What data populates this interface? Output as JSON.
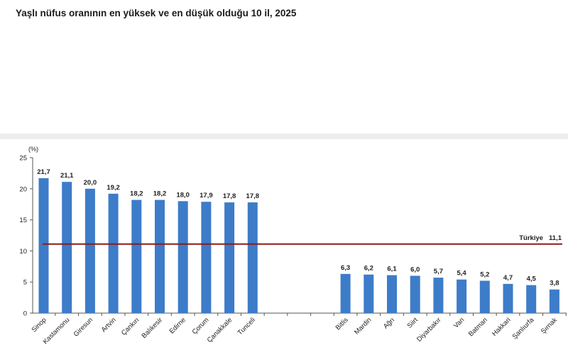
{
  "title": "Yaşlı nüfus oranının en yüksek ve en düşük olduğu 10 il, 2025",
  "chart_data": {
    "type": "bar",
    "unit_label": "(%)",
    "ylim": [
      0,
      25
    ],
    "yticks": [
      0,
      5,
      10,
      15,
      20,
      25
    ],
    "bar_color": "#3d7cc9",
    "categories": [
      "Sinop",
      "Kastamonu",
      "Giresun",
      "Artvin",
      "Çankırı",
      "Balıkesir",
      "Edirne",
      "Çorum",
      "Çanakkale",
      "Tunceli",
      "",
      "",
      "",
      "Bitlis",
      "Mardin",
      "Ağrı",
      "Siirt",
      "Diyarbakır",
      "Van",
      "Batman",
      "Hakkari",
      "Şanlıurfa",
      "Şırnak"
    ],
    "values": [
      21.7,
      21.1,
      20.0,
      19.2,
      18.2,
      18.2,
      18.0,
      17.9,
      17.8,
      17.8,
      null,
      null,
      null,
      6.3,
      6.2,
      6.1,
      6.0,
      5.7,
      5.4,
      5.2,
      4.7,
      4.5,
      3.8
    ],
    "value_labels": [
      "21,7",
      "21,1",
      "20,0",
      "19,2",
      "18,2",
      "18,2",
      "18,0",
      "17,9",
      "17,8",
      "17,8",
      "",
      "",
      "",
      "6,3",
      "6,2",
      "6,1",
      "6,0",
      "5,7",
      "5,4",
      "5,2",
      "4,7",
      "4,5",
      "3,8"
    ],
    "reference_line": {
      "value": 11.1,
      "label": "Türkiye",
      "value_label": "11,1",
      "color": "#8b1a1a"
    },
    "grid": false,
    "legend": "none"
  }
}
